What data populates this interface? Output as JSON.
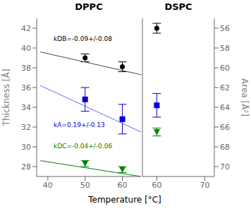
{
  "chart_data": [
    {
      "type": "scatter",
      "title": "DPPC",
      "xlabel": "Temperature  [°C]",
      "ylabel": "Thickness [Å]",
      "xlim": [
        37,
        65
      ],
      "xticks": [
        40,
        50,
        60
      ],
      "ylim": [
        27,
        43
      ],
      "yticks": [
        28,
        30,
        32,
        34,
        36,
        38,
        40,
        42
      ],
      "series": [
        {
          "type": "line",
          "color": "#444444",
          "x": [
            38,
            65
          ],
          "values": [
            39.6,
            37.3
          ]
        },
        {
          "type": "line",
          "color": "#6666ff",
          "x": [
            38,
            65
          ],
          "values": [
            36.2,
            31.5
          ]
        },
        {
          "type": "line",
          "color": "#008000",
          "x": [
            38,
            65
          ],
          "values": [
            28.6,
            27.0
          ]
        },
        {
          "type": "scatter",
          "color": "#000000",
          "marker": "circle",
          "x": [
            50,
            60
          ],
          "values": [
            39.0,
            38.1
          ],
          "errors": [
            0.4,
            0.5
          ]
        },
        {
          "type": "scatter",
          "color": "#0000cc",
          "marker": "square",
          "x": [
            50,
            60
          ],
          "values": [
            34.8,
            32.8
          ],
          "errors": [
            1.2,
            1.5
          ]
        },
        {
          "type": "scatter",
          "color": "#008000",
          "marker": "triangle_down",
          "x": [
            50,
            60
          ],
          "values": [
            28.3,
            27.7
          ],
          "errors": [
            0.3,
            0.3
          ]
        }
      ],
      "annotations": [
        {
          "text": "kDB=-0.09+/-0.08",
          "color": "#000000"
        },
        {
          "text": "kA=0.19+/-0.13",
          "color": "#0000cc"
        },
        {
          "text": "kDC=-0.04+/-0.06",
          "color": "#008000"
        }
      ]
    },
    {
      "type": "scatter",
      "title": "DSPC",
      "y2label": "Area [Å²]",
      "xlim": [
        57,
        72
      ],
      "xticks": [
        60,
        70
      ],
      "ylim": [
        27,
        43
      ],
      "y2lim": [
        71,
        55
      ],
      "y2ticks": [
        56,
        58,
        60,
        62,
        64,
        66,
        68,
        70
      ],
      "series": [
        {
          "type": "scatter",
          "color": "#000000",
          "marker": "circle",
          "x": [
            60
          ],
          "values": [
            42.0
          ],
          "errors": [
            0.5
          ]
        },
        {
          "type": "scatter",
          "color": "#0000cc",
          "marker": "square",
          "x": [
            60
          ],
          "values": [
            34.2
          ],
          "errors": [
            1.2
          ]
        },
        {
          "type": "scatter",
          "color": "#008000",
          "marker": "triangle_down",
          "x": [
            60
          ],
          "values": [
            31.5
          ],
          "errors": [
            0.4
          ]
        }
      ]
    }
  ]
}
